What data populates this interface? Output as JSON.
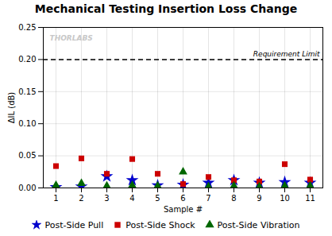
{
  "chart_data": {
    "type": "scatter",
    "title": "Mechanical Testing Insertion Loss Change",
    "xlabel": "Sample #",
    "ylabel": "ΔIL (dB)",
    "x": [
      1,
      2,
      3,
      4,
      5,
      6,
      7,
      8,
      9,
      10,
      11
    ],
    "series": [
      {
        "name": "Post-Side Pull",
        "color": "#0000CC",
        "marker": "star",
        "values": [
          0.001,
          0.002,
          0.018,
          0.012,
          0.004,
          0.005,
          0.008,
          0.012,
          0.008,
          0.009,
          0.008
        ]
      },
      {
        "name": "Post-Side Shock",
        "color": "#CC0000",
        "marker": "square",
        "values": [
          0.034,
          0.046,
          0.022,
          0.045,
          0.022,
          0.006,
          0.017,
          0.012,
          0.01,
          0.037,
          0.013
        ]
      },
      {
        "name": "Post-Side Vibration",
        "color": "#006600",
        "marker": "triangle",
        "values": [
          0.004,
          0.007,
          0.003,
          0.004,
          0.003,
          0.025,
          0.002,
          0.003,
          0.002,
          0.003,
          0.003
        ]
      }
    ],
    "xlim": [
      0.5,
      11.5
    ],
    "xticks": [
      1,
      2,
      3,
      4,
      5,
      6,
      7,
      8,
      9,
      10,
      11
    ],
    "ylim": [
      0.0,
      0.25
    ],
    "yticks": [
      {
        "value": 0,
        "label": "0.00"
      },
      0.05,
      {
        "value": 0.1,
        "label": "0.10"
      },
      0.15,
      {
        "value": 0.2,
        "label": "0.20"
      },
      0.25
    ],
    "grid": true,
    "legend": "bottom",
    "reference_lines": [
      {
        "y": 0.2,
        "label": "Requirement Limit",
        "color": "#000000",
        "line_style": "dashed"
      }
    ],
    "annotations": [
      {
        "text": "THORLABS",
        "color": "#C8C8C8"
      }
    ]
  }
}
